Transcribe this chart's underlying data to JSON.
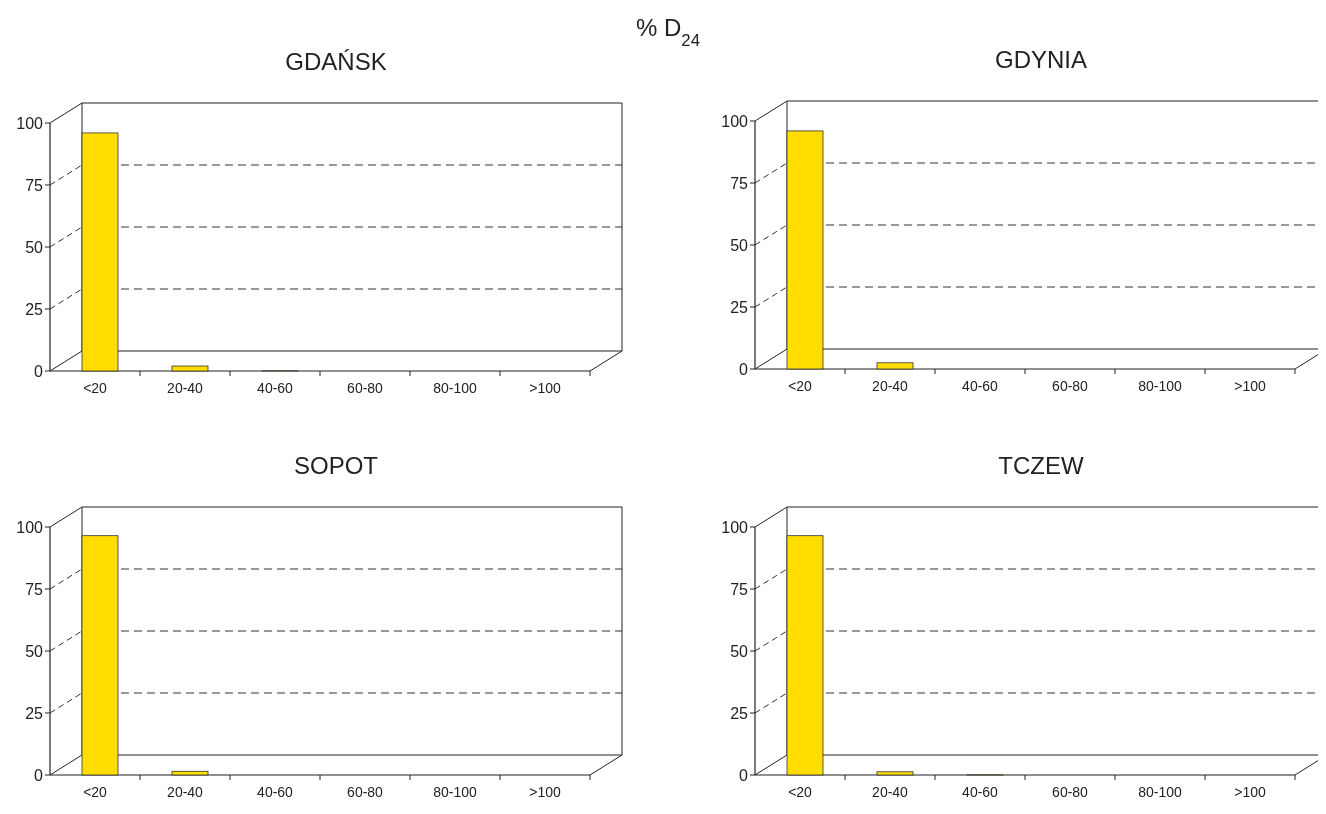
{
  "chart_data": [
    {
      "type": "bar",
      "title": "GDAŃSK",
      "annotations": [
        "% D$_{24}$"
      ],
      "categories": [
        "<20",
        "20-40",
        "40-60",
        "60-80",
        "80-100",
        ">100"
      ],
      "values": [
        96,
        2,
        0.1,
        null,
        null,
        null
      ],
      "color": "#ffdd00",
      "ylim": [
        0,
        100
      ],
      "yticks": [
        0,
        25,
        50,
        75,
        100
      ],
      "grid": "y"
    },
    {
      "type": "bar",
      "title": "GDYNIA",
      "categories": [
        "<20",
        "20-40",
        "40-60",
        "60-80",
        "80-100",
        ">100"
      ],
      "values": [
        96,
        2.5,
        null,
        null,
        null,
        null
      ],
      "color": "#ffdd00",
      "ylim": [
        0,
        100
      ],
      "yticks": [
        0,
        25,
        50,
        75,
        100
      ],
      "grid": "y"
    },
    {
      "type": "bar",
      "title": "SOPOT",
      "categories": [
        "<20",
        "20-40",
        "40-60",
        "60-80",
        "80-100",
        ">100"
      ],
      "values": [
        96.5,
        1.5,
        null,
        null,
        null,
        null
      ],
      "color": "#ffdd00",
      "ylim": [
        0,
        100
      ],
      "yticks": [
        0,
        25,
        50,
        75,
        100
      ],
      "grid": "y"
    },
    {
      "type": "bar",
      "title": "TCZEW",
      "categories": [
        "<20",
        "20-40",
        "40-60",
        "60-80",
        "80-100",
        ">100"
      ],
      "values": [
        96.5,
        1.3,
        0.1,
        null,
        null,
        null
      ],
      "color": "#ffdd00",
      "ylim": [
        0,
        100
      ],
      "yticks": [
        0,
        25,
        50,
        75,
        100
      ],
      "grid": "y"
    }
  ]
}
